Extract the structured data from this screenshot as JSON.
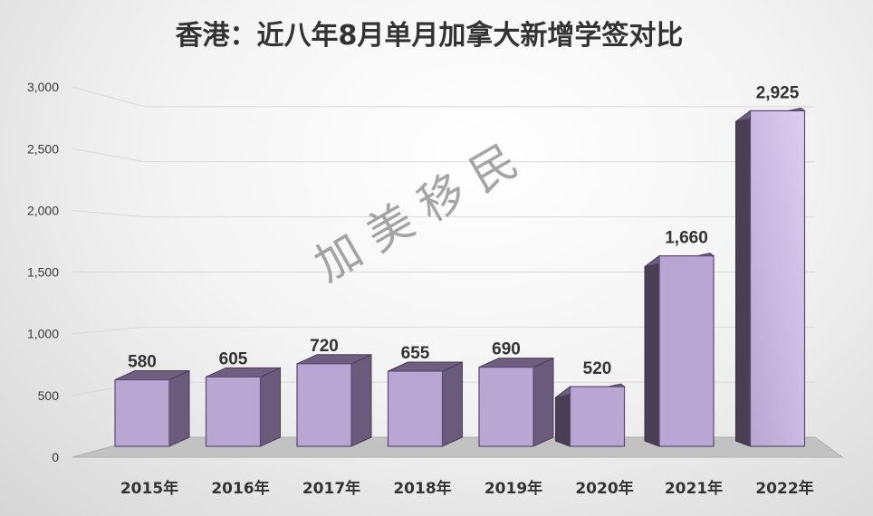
{
  "chart_data": {
    "type": "bar",
    "title": "香港：近八年8月单月加拿大新增学签对比",
    "categories": [
      "2015年",
      "2016年",
      "2017年",
      "2018年",
      "2019年",
      "2020年",
      "2021年",
      "2022年"
    ],
    "values": [
      580,
      605,
      720,
      655,
      690,
      520,
      1660,
      2925
    ],
    "value_labels": [
      "580",
      "605",
      "720",
      "655",
      "690",
      "520",
      "1,660",
      "2,925"
    ],
    "yticks": [
      "0",
      "500",
      "1,000",
      "1,500",
      "2,000",
      "2,500",
      "3,000"
    ],
    "ylim": [
      0,
      3000
    ],
    "grid": true,
    "legend": "none",
    "watermark": "加 美 移 民",
    "colors": {
      "bar_front": "#b9a6d3",
      "bar_front_highlight": "#d8c8ee",
      "bar_side": "#4a3e55",
      "bar_top": "#6e5f80",
      "bar_edge": "#5c4a72",
      "floor": "#c2c2c2",
      "grid": "#d9d9d9"
    }
  }
}
